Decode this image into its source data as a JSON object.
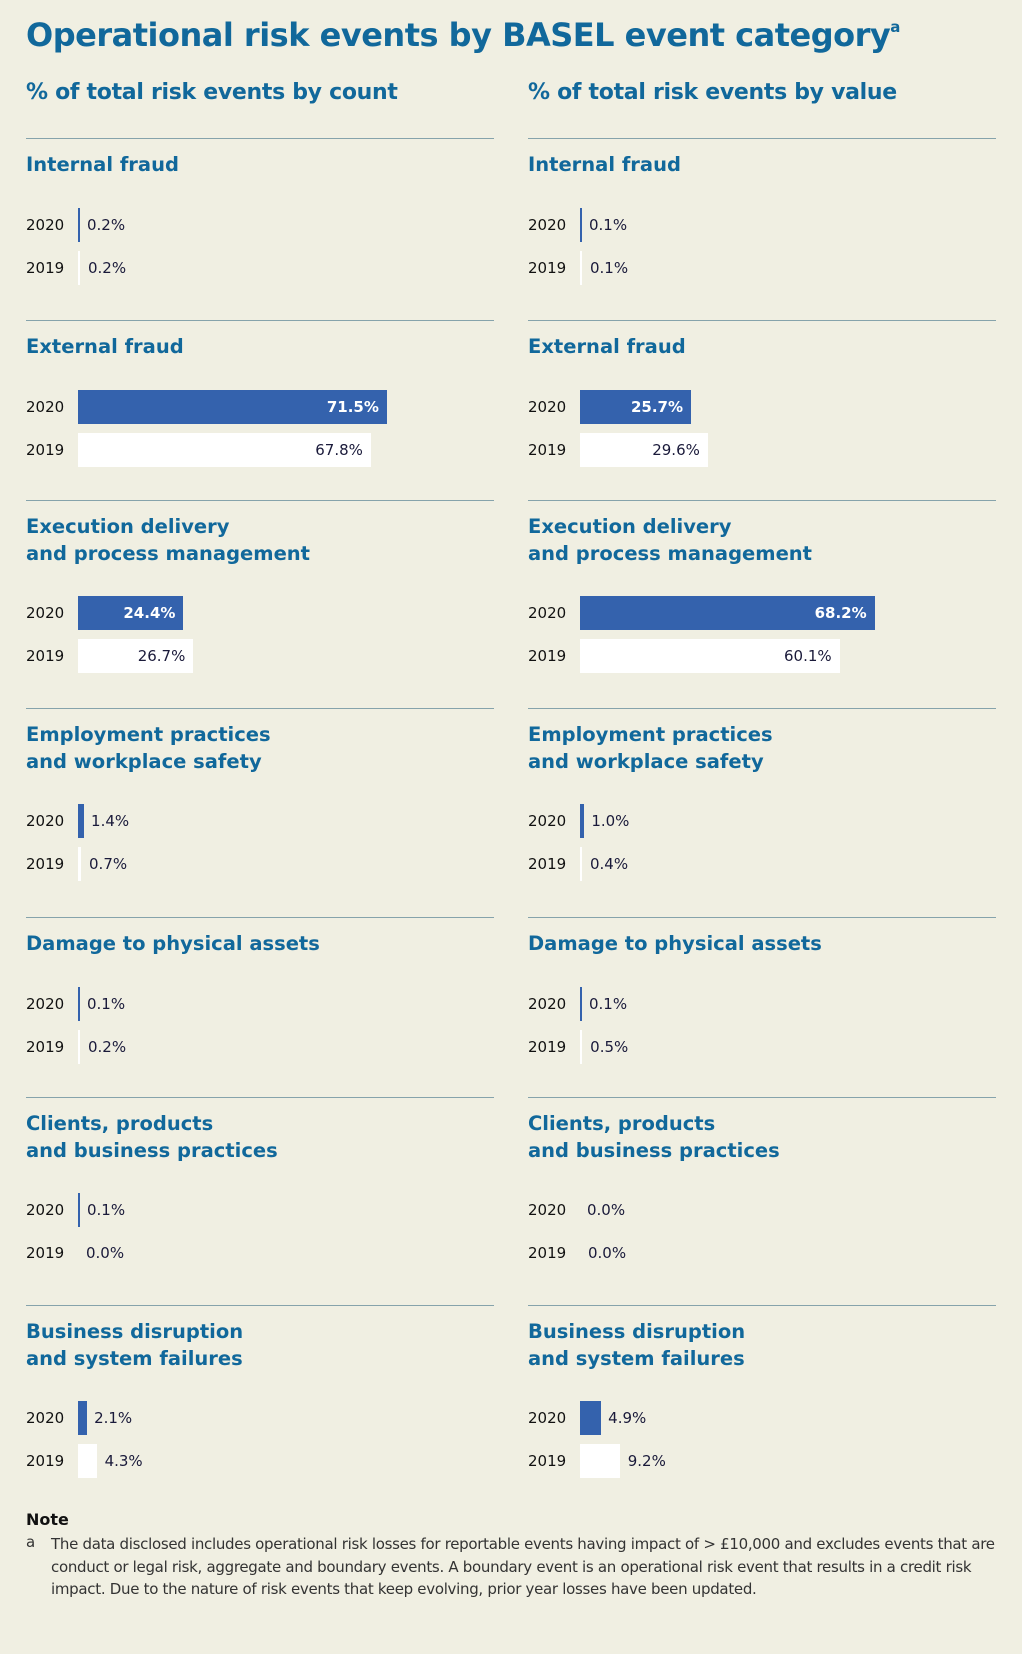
{
  "title": "Operational risk events by BASEL event category",
  "title_footnote_marker": "a",
  "colors": {
    "title": "#11689b",
    "bar_2020": "#3462ad",
    "bar_2019": "#ffffff",
    "background": "#f0efe2"
  },
  "chart_data": [
    {
      "type": "bar",
      "orientation": "horizontal",
      "title": "% of total risk events by count",
      "years": [
        "2020",
        "2019"
      ],
      "categories": [
        {
          "name": "Internal fraud",
          "values": {
            "2020": 0.2,
            "2019": 0.2
          },
          "labels": {
            "2020": "0.2%",
            "2019": "0.2%"
          }
        },
        {
          "name": "External fraud",
          "values": {
            "2020": 71.5,
            "2019": 67.8
          },
          "labels": {
            "2020": "71.5%",
            "2019": "67.8%"
          }
        },
        {
          "name": "Execution delivery\nand process management",
          "values": {
            "2020": 24.4,
            "2019": 26.7
          },
          "labels": {
            "2020": "24.4%",
            "2019": "26.7%"
          }
        },
        {
          "name": "Employment practices\nand workplace safety",
          "values": {
            "2020": 1.4,
            "2019": 0.7
          },
          "labels": {
            "2020": "1.4%",
            "2019": "0.7%"
          }
        },
        {
          "name": "Damage to physical assets",
          "values": {
            "2020": 0.1,
            "2019": 0.2
          },
          "labels": {
            "2020": "0.1%",
            "2019": "0.2%"
          }
        },
        {
          "name": "Clients, products\nand business practices",
          "values": {
            "2020": 0.1,
            "2019": 0.0
          },
          "labels": {
            "2020": "0.1%",
            "2019": "0.0%"
          }
        },
        {
          "name": "Business disruption\nand system failures",
          "values": {
            "2020": 2.1,
            "2019": 4.3
          },
          "labels": {
            "2020": "2.1%",
            "2019": "4.3%"
          }
        }
      ]
    },
    {
      "type": "bar",
      "orientation": "horizontal",
      "title": "% of total risk events by value",
      "years": [
        "2020",
        "2019"
      ],
      "categories": [
        {
          "name": "Internal fraud",
          "values": {
            "2020": 0.1,
            "2019": 0.1
          },
          "labels": {
            "2020": "0.1%",
            "2019": "0.1%"
          }
        },
        {
          "name": "External fraud",
          "values": {
            "2020": 25.7,
            "2019": 29.6
          },
          "labels": {
            "2020": "25.7%",
            "2019": "29.6%"
          }
        },
        {
          "name": "Execution delivery\nand process management",
          "values": {
            "2020": 68.2,
            "2019": 60.1
          },
          "labels": {
            "2020": "68.2%",
            "2019": "60.1%"
          }
        },
        {
          "name": "Employment practices\nand workplace safety",
          "values": {
            "2020": 1.0,
            "2019": 0.4
          },
          "labels": {
            "2020": "1.0%",
            "2019": "0.4%"
          }
        },
        {
          "name": "Damage to physical assets",
          "values": {
            "2020": 0.1,
            "2019": 0.5
          },
          "labels": {
            "2020": "0.1%",
            "2019": "0.5%"
          }
        },
        {
          "name": "Clients, products\nand business practices",
          "values": {
            "2020": 0.0,
            "2019": 0.0
          },
          "labels": {
            "2020": "0.0%",
            "2019": "0.0%"
          }
        },
        {
          "name": "Business disruption\nand system failures",
          "values": {
            "2020": 4.9,
            "2019": 9.2
          },
          "labels": {
            "2020": "4.9%",
            "2019": "9.2%"
          }
        }
      ]
    }
  ],
  "note": {
    "heading": "Note",
    "marker": "a",
    "text": "The data disclosed includes operational risk losses for reportable events having impact of > £10,000 and excludes events that are conduct or legal risk, aggregate and boundary events. A boundary event is an operational risk event that results in a credit risk impact. Due to the nature of risk events that keep evolving, prior year losses have been updated."
  }
}
